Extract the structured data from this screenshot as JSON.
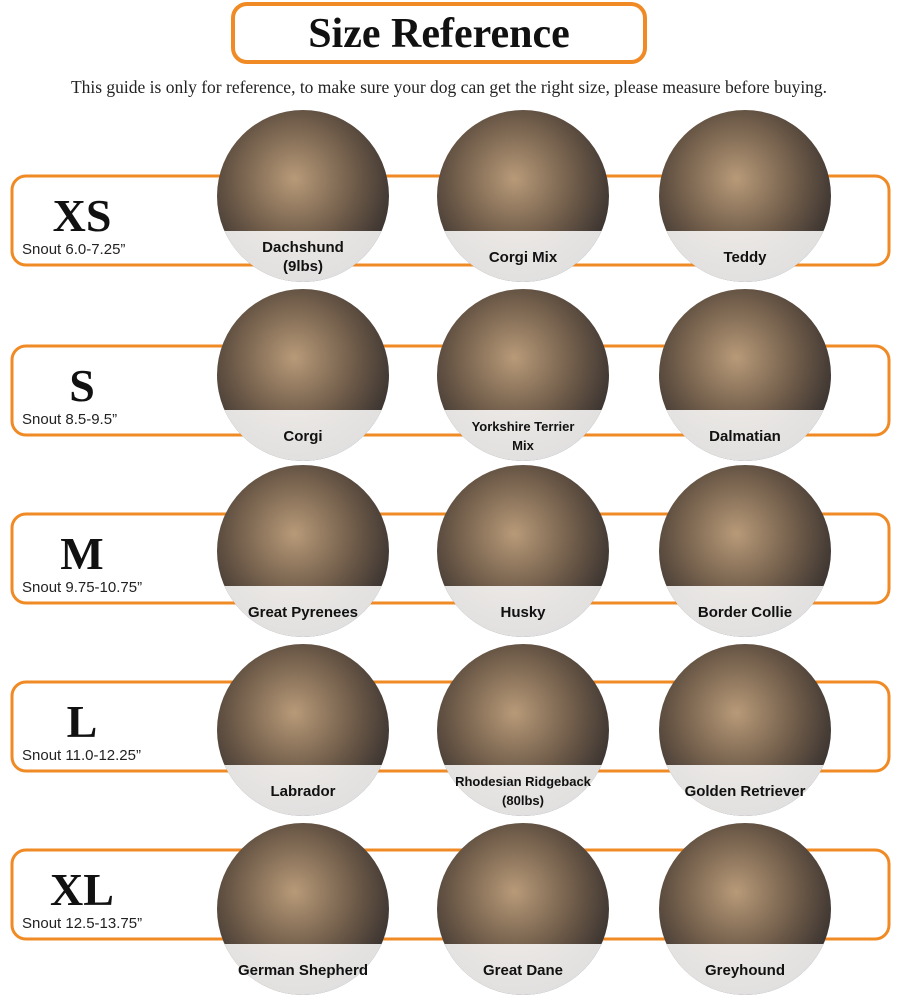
{
  "header": {
    "title": "Size Reference",
    "subtitle": "This guide is only for reference, to make sure your dog can get the right size, please measure before buying."
  },
  "rows": [
    {
      "size": "XS",
      "snout": "Snout 6.0-7.25”",
      "dogs": [
        {
          "lines": [
            "Dachshund",
            "(9lbs)"
          ]
        },
        {
          "lines": [
            "Corgi Mix"
          ]
        },
        {
          "lines": [
            "Teddy"
          ]
        }
      ]
    },
    {
      "size": "S",
      "snout": "Snout 8.5-9.5”",
      "dogs": [
        {
          "lines": [
            "Corgi"
          ]
        },
        {
          "lines": [
            "Yorkshire Terrier",
            "Mix"
          ]
        },
        {
          "lines": [
            "Dalmatian"
          ]
        }
      ]
    },
    {
      "size": "M",
      "snout": "Snout 9.75-10.75”",
      "dogs": [
        {
          "lines": [
            "Great Pyrenees"
          ]
        },
        {
          "lines": [
            "Husky"
          ]
        },
        {
          "lines": [
            "Border Collie"
          ]
        }
      ]
    },
    {
      "size": "L",
      "snout": "Snout 11.0-12.25”",
      "dogs": [
        {
          "lines": [
            "Labrador"
          ]
        },
        {
          "lines": [
            "Rhodesian Ridgeback",
            "(80lbs)"
          ]
        },
        {
          "lines": [
            "Golden Retriever"
          ]
        }
      ]
    },
    {
      "size": "XL",
      "snout": "Snout 12.5-13.75”",
      "dogs": [
        {
          "lines": [
            "German Shepherd"
          ]
        },
        {
          "lines": [
            "Great Dane"
          ]
        },
        {
          "lines": [
            "Greyhound"
          ]
        }
      ]
    }
  ]
}
